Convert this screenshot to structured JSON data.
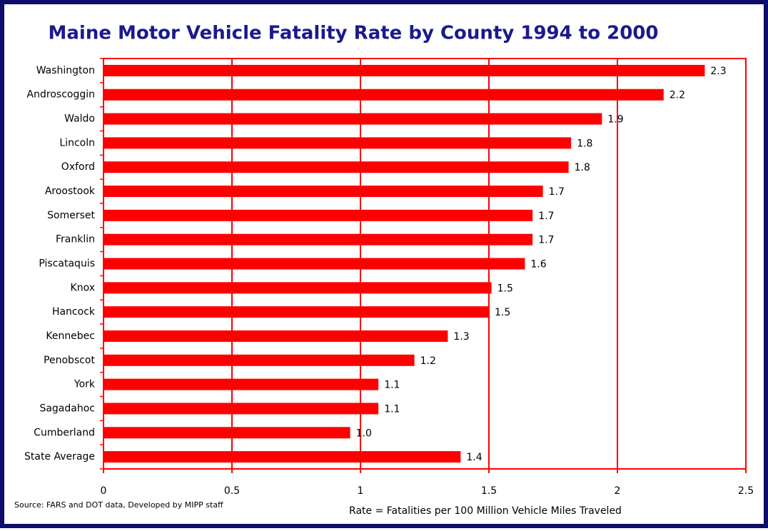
{
  "chart_data": {
    "type": "barh",
    "title": "Maine Motor Vehicle Fatality Rate by County 1994 to 2000",
    "x_label": "Rate = Fatalities per 100 Million Vehicle Miles Traveled",
    "source": "Source: FARS and DOT data, Developed by MIPP staff",
    "categories": [
      "Washington",
      "Androscoggin",
      "Waldo",
      "Lincoln",
      "Oxford",
      "Aroostook",
      "Somerset",
      "Franklin",
      "Piscataquis",
      "Knox",
      "Hancock",
      "Kennebec",
      "Penobscot",
      "York",
      "Sagadahoc",
      "Cumberland",
      "State Average"
    ],
    "values": [
      2.34,
      2.18,
      1.94,
      1.82,
      1.81,
      1.71,
      1.67,
      1.67,
      1.64,
      1.51,
      1.5,
      1.34,
      1.21,
      1.07,
      1.07,
      0.96,
      1.39
    ],
    "value_labels": [
      "2.3",
      "2.2",
      "1.9",
      "1.8",
      "1.8",
      "1.7",
      "1.7",
      "1.7",
      "1.6",
      "1.5",
      "1.5",
      "1.3",
      "1.2",
      "1.1",
      "1.1",
      "1.0",
      "1.4"
    ],
    "color": "#ff0000",
    "xlim": [
      0,
      2.5
    ],
    "xticks": [
      0,
      0.5,
      1,
      1.5,
      2,
      2.5
    ],
    "grid": true
  }
}
